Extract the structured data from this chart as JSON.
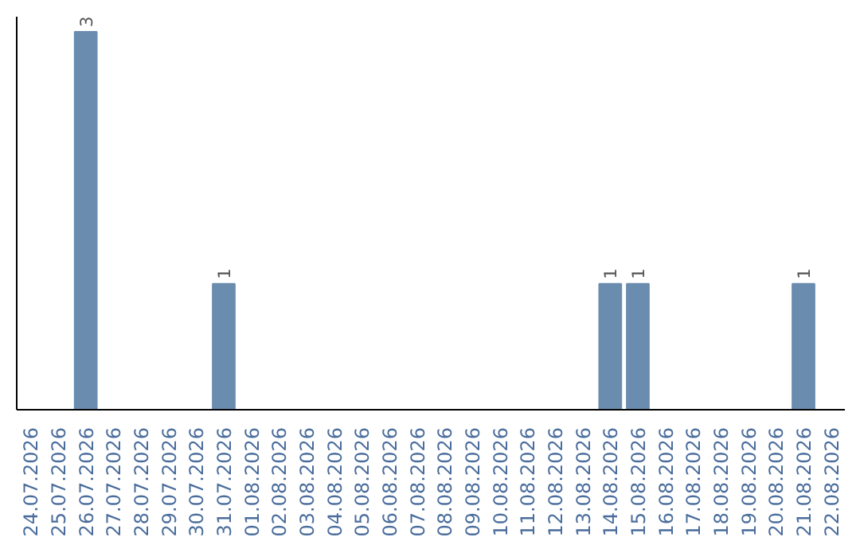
{
  "chart_data": {
    "type": "bar",
    "categories": [
      "24.07.2026",
      "25.07.2026",
      "26.07.2026",
      "27.07.2026",
      "28.07.2026",
      "29.07.2026",
      "30.07.2026",
      "31.07.2026",
      "01.08.2026",
      "02.08.2026",
      "03.08.2026",
      "04.08.2026",
      "05.08.2026",
      "06.08.2026",
      "07.08.2026",
      "08.08.2026",
      "09.08.2026",
      "10.08.2026",
      "11.08.2026",
      "12.08.2026",
      "13.08.2026",
      "14.08.2026",
      "15.08.2026",
      "16.08.2026",
      "17.08.2026",
      "18.08.2026",
      "19.08.2026",
      "20.08.2026",
      "21.08.2026",
      "22.08.2026"
    ],
    "values": [
      0,
      0,
      3,
      0,
      0,
      0,
      0,
      1,
      0,
      0,
      0,
      0,
      0,
      0,
      0,
      0,
      0,
      0,
      0,
      0,
      0,
      1,
      1,
      0,
      0,
      0,
      0,
      0,
      1,
      0
    ],
    "value_labels": [
      null,
      null,
      "3",
      null,
      null,
      null,
      null,
      "1",
      null,
      null,
      null,
      null,
      null,
      null,
      null,
      null,
      null,
      null,
      null,
      null,
      null,
      "1",
      "1",
      null,
      null,
      null,
      null,
      null,
      "1",
      null
    ],
    "color": "#6a8caf",
    "grid": false,
    "tick_labels": "x"
  }
}
